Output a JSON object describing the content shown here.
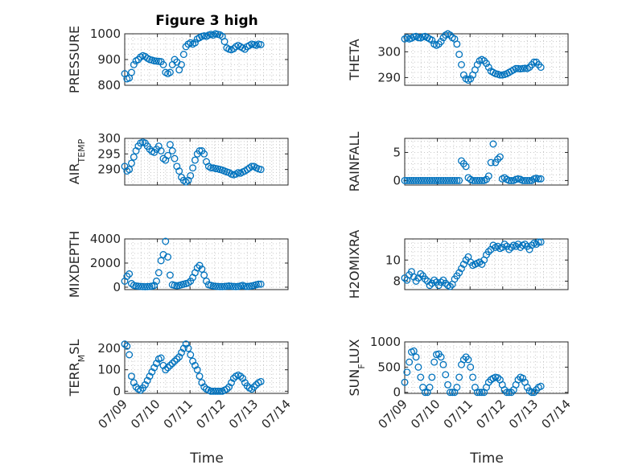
{
  "figure": {
    "title": "Figure 3 high",
    "xlabel": "Time",
    "date_ticks": [
      "07/09",
      "07/10",
      "07/11",
      "07/12",
      "07/13",
      "07/14"
    ]
  },
  "chart_data": [
    {
      "id": "pressure",
      "type": "scatter",
      "ylabel": "PRESSURE",
      "ylabel_sub": "",
      "ylim": [
        800,
        1000
      ],
      "yticks": [
        800,
        900,
        1000
      ],
      "xlim": [
        "07/09",
        "07/14"
      ],
      "data_xlim": [
        "07/09 00:00",
        "07/13 04:00"
      ],
      "grid": true,
      "y": [
        845,
        825,
        828,
        850,
        880,
        895,
        900,
        910,
        915,
        912,
        905,
        900,
        898,
        895,
        894,
        893,
        892,
        880,
        850,
        845,
        850,
        880,
        900,
        890,
        860,
        880,
        920,
        950,
        960,
        965,
        960,
        965,
        980,
        985,
        990,
        992,
        990,
        995,
        998,
        995,
        1000,
        998,
        996,
        990,
        970,
        945,
        940,
        938,
        942,
        950,
        955,
        950,
        945,
        940,
        950,
        955,
        960,
        958,
        955,
        960,
        958
      ]
    },
    {
      "id": "theta",
      "type": "scatter",
      "ylabel": "THETA",
      "ylabel_sub": "",
      "ylim": [
        287,
        307
      ],
      "yticks": [
        290,
        300
      ],
      "xlim": [
        "07/09",
        "07/14"
      ],
      "data_xlim": [
        "07/09 00:00",
        "07/13 04:00"
      ],
      "grid": true,
      "y": [
        305,
        305.5,
        305,
        305.3,
        305.8,
        306,
        305.5,
        305.4,
        305.8,
        306,
        305.5,
        305,
        304.5,
        303,
        302.5,
        303,
        304,
        305.5,
        306.5,
        307,
        306.5,
        305.5,
        305,
        303,
        299,
        295,
        291,
        289.5,
        289,
        289.5,
        291,
        293,
        295,
        296.5,
        297,
        296.5,
        295.5,
        294,
        292.5,
        292,
        291.5,
        291.3,
        291,
        291,
        291.2,
        291.5,
        292,
        292.5,
        293,
        293.5,
        293.5,
        293.4,
        293.5,
        293.6,
        293.5,
        294,
        295,
        296,
        296,
        295,
        294
      ]
    },
    {
      "id": "air_temp",
      "type": "scatter",
      "ylabel": "AIR",
      "ylabel_sub": "TEMP",
      "ylim": [
        285,
        300
      ],
      "yticks": [
        290,
        295,
        300
      ],
      "xlim": [
        "07/09",
        "07/14"
      ],
      "data_xlim": [
        "07/09 00:00",
        "07/13 04:00"
      ],
      "grid": true,
      "y": [
        291,
        289.5,
        290,
        292,
        294,
        296,
        297.5,
        298.5,
        298.8,
        298.5,
        297.5,
        296.5,
        295.8,
        295.5,
        296.5,
        297.5,
        296,
        293.5,
        293,
        294.5,
        298,
        296,
        293.5,
        291,
        289.5,
        287.5,
        286.5,
        286,
        286.5,
        288,
        290.5,
        293,
        295,
        296,
        296,
        295,
        292.5,
        291,
        290.5,
        290.5,
        290.3,
        290.2,
        290,
        289.8,
        289.5,
        289.2,
        289,
        288.5,
        288.3,
        288.5,
        289,
        288.8,
        289.2,
        289.5,
        290,
        290.5,
        291,
        291,
        290.5,
        290.2,
        290
      ]
    },
    {
      "id": "rainfall",
      "type": "scatter",
      "ylabel": "RAINFALL",
      "ylabel_sub": "",
      "ylim": [
        -0.8,
        7.5
      ],
      "yticks": [
        0,
        5
      ],
      "xlim": [
        "07/09",
        "07/14"
      ],
      "data_xlim": [
        "07/09 00:00",
        "07/13 04:00"
      ],
      "grid": true,
      "y": [
        0,
        0,
        0,
        0,
        0,
        0,
        0,
        0,
        0,
        0,
        0,
        0,
        0,
        0,
        0,
        0,
        0,
        0,
        0,
        0,
        0,
        0,
        0,
        0,
        0,
        3.5,
        3,
        2.5,
        0.5,
        0.2,
        0,
        0,
        0,
        0,
        0,
        0,
        0.2,
        0.8,
        3.2,
        6.5,
        3.2,
        3.8,
        4.2,
        0.3,
        0.5,
        0.2,
        0,
        0,
        0,
        0.2,
        0.3,
        0.2,
        0,
        0,
        0,
        0,
        0,
        0.3,
        0.4,
        0.3,
        0.3
      ]
    },
    {
      "id": "mixdepth",
      "type": "scatter",
      "ylabel": "MIXDEPTH",
      "ylabel_sub": "",
      "ylim": [
        -200,
        4000
      ],
      "yticks": [
        0,
        2000,
        4000
      ],
      "xlim": [
        "07/09",
        "07/14"
      ],
      "data_xlim": [
        "07/09 00:00",
        "07/13 04:00"
      ],
      "grid": true,
      "y": [
        500,
        900,
        1100,
        300,
        150,
        100,
        80,
        60,
        50,
        40,
        50,
        60,
        80,
        150,
        500,
        1200,
        2200,
        2700,
        3800,
        2500,
        1000,
        200,
        150,
        120,
        150,
        200,
        250,
        300,
        350,
        500,
        800,
        1200,
        1600,
        1800,
        1500,
        1000,
        500,
        200,
        150,
        100,
        80,
        60,
        50,
        50,
        60,
        80,
        100,
        80,
        60,
        50,
        60,
        100,
        150,
        80,
        60,
        80,
        100,
        150,
        200,
        250,
        250
      ]
    },
    {
      "id": "h2omixra",
      "type": "scatter",
      "ylabel": "H2OMIXRA",
      "ylabel_sub": "",
      "ylim": [
        7.2,
        12
      ],
      "yticks": [
        8,
        10
      ],
      "xlim": [
        "07/09",
        "07/14"
      ],
      "data_xlim": [
        "07/09 00:00",
        "07/13 04:00"
      ],
      "grid": true,
      "y": [
        8.3,
        8.1,
        8.6,
        8.9,
        8.4,
        8.0,
        8.3,
        8.7,
        8.5,
        8.2,
        8.0,
        7.6,
        7.8,
        8.1,
        7.9,
        7.6,
        7.9,
        8.1,
        7.8,
        7.6,
        7.5,
        7.7,
        8.2,
        8.5,
        8.8,
        9.2,
        9.6,
        10.0,
        10.3,
        9.8,
        9.5,
        9.6,
        9.7,
        9.8,
        9.6,
        10.0,
        10.5,
        10.8,
        11.0,
        11.4,
        11.2,
        11.3,
        11.1,
        11.2,
        11.5,
        11.3,
        11.0,
        11.2,
        11.4,
        11.3,
        11.5,
        11.2,
        11.4,
        11.5,
        11.3,
        11.0,
        11.4,
        11.6,
        11.5,
        11.7,
        11.7
      ]
    },
    {
      "id": "terr_msl",
      "type": "scatter",
      "ylabel": "TERR",
      "ylabel_sub": "M",
      "ylabel_suffix": "SL",
      "ylim": [
        -10,
        230
      ],
      "yticks": [
        0,
        100,
        200
      ],
      "xlim": [
        "07/09",
        "07/14"
      ],
      "data_xlim": [
        "07/09 00:00",
        "07/13 04:00"
      ],
      "grid": true,
      "y": [
        220,
        210,
        170,
        70,
        40,
        20,
        10,
        5,
        15,
        30,
        50,
        70,
        90,
        110,
        130,
        150,
        155,
        120,
        100,
        110,
        120,
        130,
        140,
        150,
        160,
        180,
        200,
        220,
        200,
        170,
        140,
        120,
        100,
        70,
        40,
        20,
        10,
        5,
        0,
        0,
        0,
        0,
        0,
        0,
        5,
        10,
        20,
        40,
        60,
        70,
        75,
        70,
        60,
        40,
        25,
        15,
        10,
        20,
        30,
        40,
        45
      ]
    },
    {
      "id": "sun_flux",
      "type": "scatter",
      "ylabel": "SUN",
      "ylabel_sub": "F",
      "ylabel_suffix": "LUX",
      "ylim": [
        -20,
        1000
      ],
      "yticks": [
        0,
        500,
        1000
      ],
      "xlim": [
        "07/09",
        "07/14"
      ],
      "data_xlim": [
        "07/09 00:00",
        "07/13 04:00"
      ],
      "grid": true,
      "y": [
        200,
        400,
        600,
        800,
        820,
        700,
        500,
        300,
        100,
        0,
        0,
        100,
        300,
        600,
        750,
        760,
        700,
        550,
        350,
        150,
        0,
        0,
        0,
        100,
        300,
        550,
        650,
        700,
        650,
        500,
        300,
        100,
        0,
        0,
        0,
        0,
        100,
        200,
        250,
        280,
        300,
        290,
        250,
        150,
        50,
        0,
        0,
        0,
        50,
        150,
        250,
        300,
        280,
        200,
        100,
        30,
        0,
        0,
        50,
        100,
        120
      ]
    }
  ]
}
